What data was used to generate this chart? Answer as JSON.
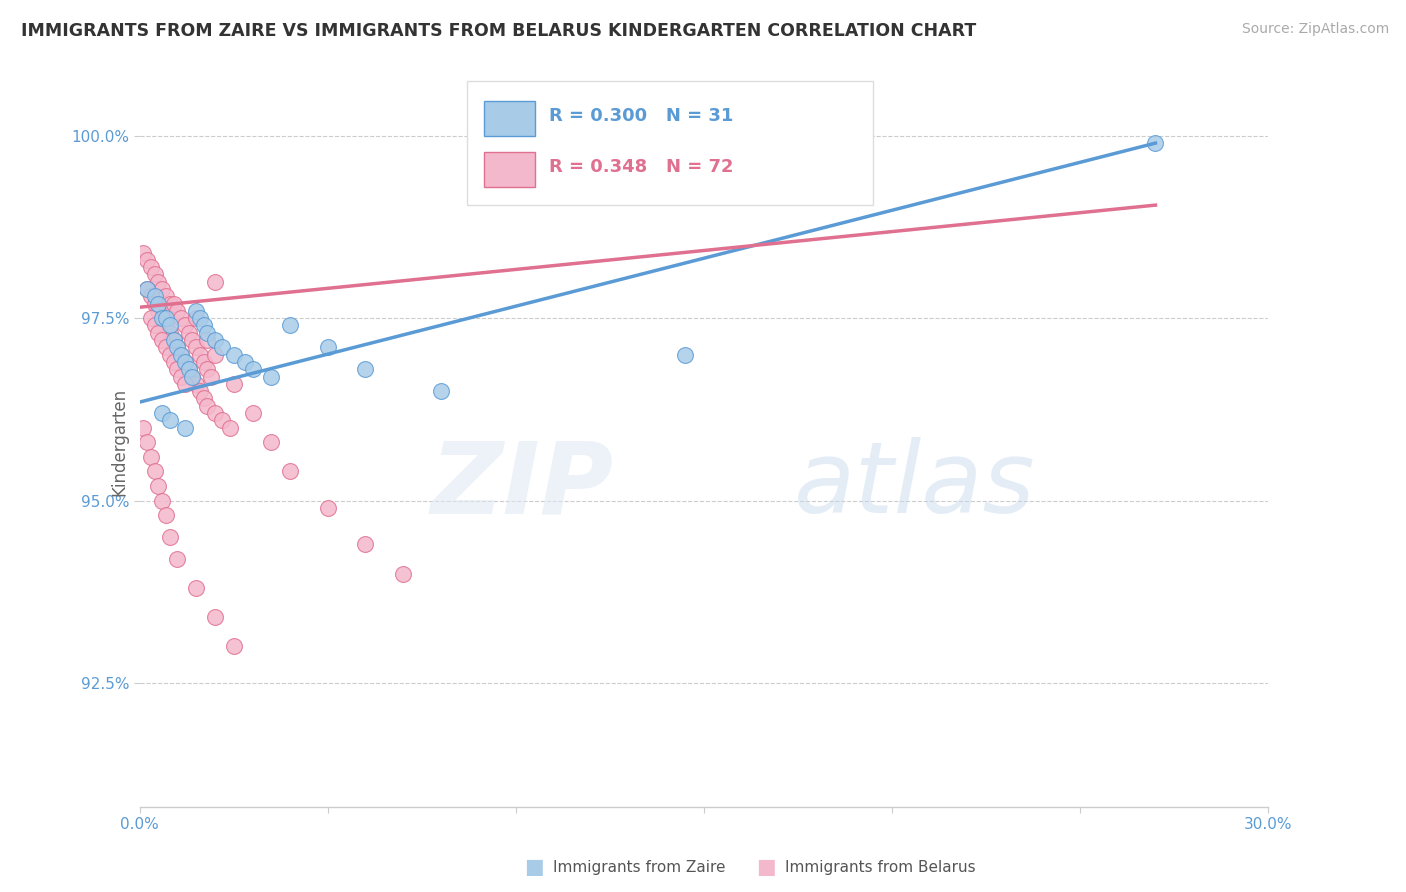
{
  "title": "IMMIGRANTS FROM ZAIRE VS IMMIGRANTS FROM BELARUS KINDERGARTEN CORRELATION CHART",
  "source_text": "Source: ZipAtlas.com",
  "ylabel": "Kindergarten",
  "xlim": [
    0.0,
    0.3
  ],
  "ylim": [
    0.908,
    1.008
  ],
  "xticks": [
    0.0,
    0.05,
    0.1,
    0.15,
    0.2,
    0.25,
    0.3
  ],
  "xticklabels": [
    "0.0%",
    "",
    "",
    "",
    "",
    "",
    "30.0%"
  ],
  "yticks": [
    0.925,
    0.95,
    0.975,
    1.0
  ],
  "yticklabels": [
    "92.5%",
    "95.0%",
    "97.5%",
    "100.0%"
  ],
  "legend_line1": "R = 0.300   N = 31",
  "legend_line2": "R = 0.348   N = 72",
  "color_zaire": "#a8cce8",
  "color_zaire_edge": "#5b9bd5",
  "color_belarus": "#f4b8cc",
  "color_belarus_edge": "#e07090",
  "color_zaire_line": "#5b9bd5",
  "color_belarus_line": "#e07090",
  "color_axis_label": "#5b9bd5",
  "color_title": "#333333",
  "color_source": "#aaaaaa",
  "watermark_zip": "ZIP",
  "watermark_atlas": "atlas",
  "zaire_line_x": [
    0.0,
    0.27
  ],
  "zaire_line_y": [
    0.9635,
    0.999
  ],
  "belarus_line_x": [
    0.0,
    0.27
  ],
  "belarus_line_y": [
    0.9765,
    0.9905
  ],
  "zaire_x": [
    0.002,
    0.004,
    0.005,
    0.006,
    0.007,
    0.008,
    0.009,
    0.01,
    0.011,
    0.012,
    0.013,
    0.014,
    0.015,
    0.016,
    0.017,
    0.018,
    0.02,
    0.022,
    0.025,
    0.028,
    0.03,
    0.035,
    0.04,
    0.05,
    0.06,
    0.08,
    0.145,
    0.27,
    0.006,
    0.008,
    0.012
  ],
  "zaire_y": [
    0.979,
    0.978,
    0.977,
    0.975,
    0.975,
    0.974,
    0.972,
    0.971,
    0.97,
    0.969,
    0.968,
    0.967,
    0.976,
    0.975,
    0.974,
    0.973,
    0.972,
    0.971,
    0.97,
    0.969,
    0.968,
    0.967,
    0.974,
    0.971,
    0.968,
    0.965,
    0.97,
    0.999,
    0.962,
    0.961,
    0.96
  ],
  "belarus_x": [
    0.001,
    0.002,
    0.003,
    0.004,
    0.005,
    0.006,
    0.007,
    0.008,
    0.009,
    0.01,
    0.011,
    0.012,
    0.013,
    0.014,
    0.015,
    0.016,
    0.017,
    0.018,
    0.019,
    0.02,
    0.002,
    0.003,
    0.004,
    0.005,
    0.006,
    0.007,
    0.008,
    0.009,
    0.01,
    0.011,
    0.012,
    0.013,
    0.014,
    0.015,
    0.016,
    0.017,
    0.018,
    0.02,
    0.022,
    0.024,
    0.003,
    0.004,
    0.005,
    0.006,
    0.007,
    0.008,
    0.009,
    0.01,
    0.011,
    0.012,
    0.015,
    0.018,
    0.02,
    0.025,
    0.03,
    0.035,
    0.04,
    0.05,
    0.06,
    0.07,
    0.001,
    0.002,
    0.003,
    0.004,
    0.005,
    0.006,
    0.007,
    0.008,
    0.01,
    0.015,
    0.02,
    0.025
  ],
  "belarus_y": [
    0.984,
    0.983,
    0.982,
    0.981,
    0.98,
    0.979,
    0.978,
    0.977,
    0.977,
    0.976,
    0.975,
    0.974,
    0.973,
    0.972,
    0.971,
    0.97,
    0.969,
    0.968,
    0.967,
    0.98,
    0.979,
    0.978,
    0.977,
    0.976,
    0.975,
    0.974,
    0.973,
    0.972,
    0.971,
    0.97,
    0.969,
    0.968,
    0.967,
    0.966,
    0.965,
    0.964,
    0.963,
    0.962,
    0.961,
    0.96,
    0.975,
    0.974,
    0.973,
    0.972,
    0.971,
    0.97,
    0.969,
    0.968,
    0.967,
    0.966,
    0.975,
    0.972,
    0.97,
    0.966,
    0.962,
    0.958,
    0.954,
    0.949,
    0.944,
    0.94,
    0.96,
    0.958,
    0.956,
    0.954,
    0.952,
    0.95,
    0.948,
    0.945,
    0.942,
    0.938,
    0.934,
    0.93
  ]
}
